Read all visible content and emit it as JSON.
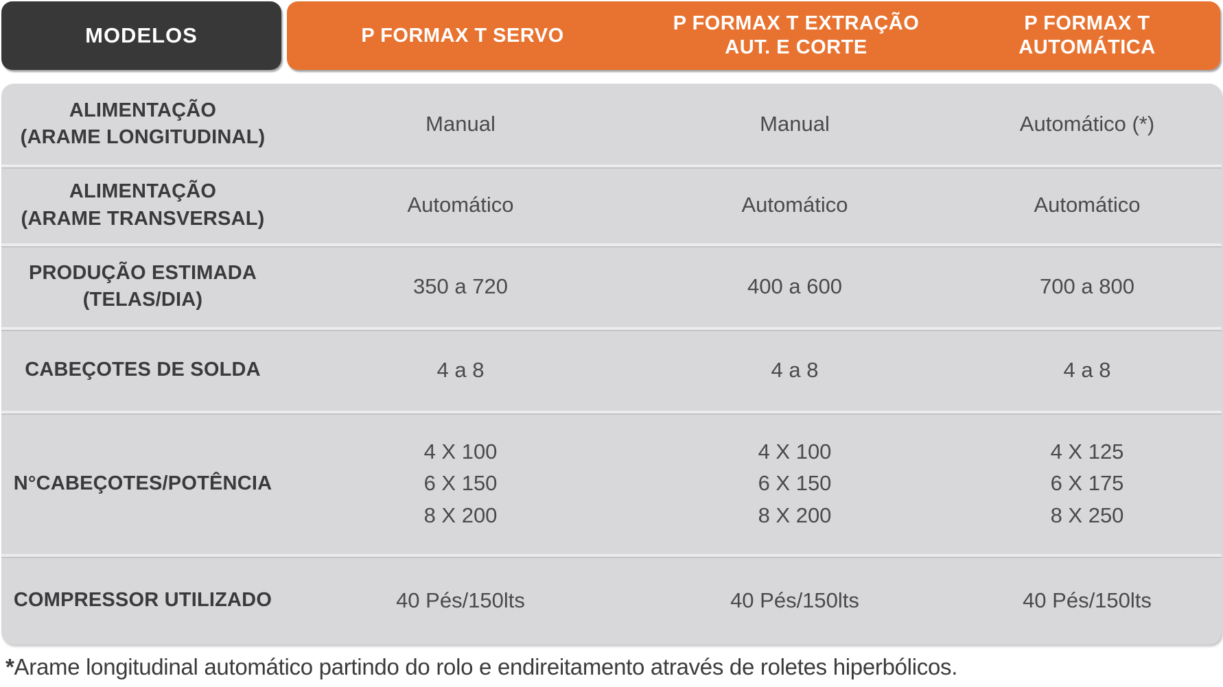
{
  "header": {
    "corner_label": "MODELOS",
    "columns": [
      "P FORMAX T SERVO",
      "P FORMAX T EXTRAÇÃO\nAUT. E CORTE",
      "P FORMAX T\nAUTOMÁTICA"
    ]
  },
  "table": {
    "rows": [
      {
        "label": "ALIMENTAÇÃO\n(ARAME LONGITUDINAL)",
        "values": [
          "Manual",
          "Manual",
          "Automático (*)"
        ]
      },
      {
        "label": "ALIMENTAÇÃO\n(ARAME TRANSVERSAL)",
        "values": [
          "Automático",
          "Automático",
          "Automático"
        ]
      },
      {
        "label": "PRODUÇÃO ESTIMADA\n(TELAS/DIA)",
        "values": [
          "350 a 720",
          "400 a 600",
          "700 a 800"
        ]
      },
      {
        "label": "CABEÇOTES DE SOLDA",
        "values": [
          "4 a 8",
          "4 a 8",
          "4 a 8"
        ]
      },
      {
        "label": "N°CABEÇOTES/POTÊNCIA",
        "values": [
          "4 X 100\n6 X 150\n8 X 200",
          "4 X 100\n6 X 150\n8 X 200",
          "4 X 125\n6 X 175\n8 X 250"
        ]
      },
      {
        "label": "COMPRESSOR UTILIZADO",
        "values": [
          "40 Pés/150lts",
          "40 Pés/150lts",
          "40 Pés/150lts"
        ]
      }
    ]
  },
  "footnote": {
    "marker": "*",
    "text": "Arame longitudinal automático partindo do rolo e endireitamento através de roletes hiperbólicos."
  },
  "colors": {
    "accent_orange": "#E87330",
    "header_dark": "#383838",
    "row_gray": "#D8D8DB",
    "label_text": "#3A3A3C",
    "value_text": "#4A4A4D"
  }
}
